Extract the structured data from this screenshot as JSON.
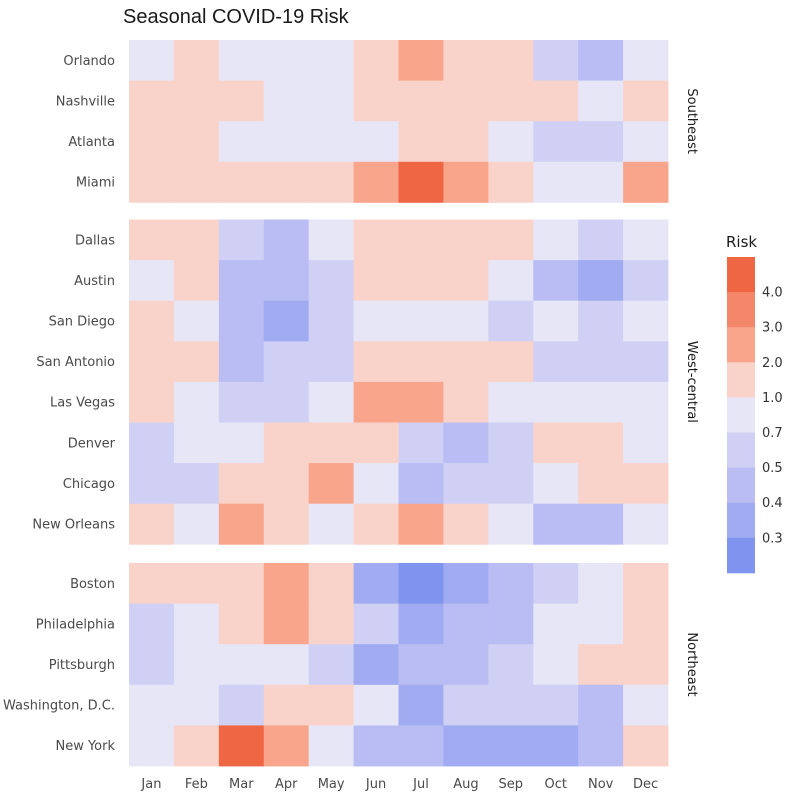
{
  "chart_data": {
    "type": "heatmap",
    "title": "Seasonal COVID-19 Risk",
    "x": [
      "Jan",
      "Feb",
      "Mar",
      "Apr",
      "May",
      "Jun",
      "Jul",
      "Aug",
      "Sep",
      "Oct",
      "Nov",
      "Dec"
    ],
    "legend": {
      "title": "Risk",
      "placement": "right",
      "breaks": [
        4.0,
        3.0,
        2.0,
        1.0,
        0.7,
        0.5,
        0.4,
        0.3
      ],
      "break_labels": [
        "4.0",
        "3.0",
        "2.0",
        "1.0",
        "0.7",
        "0.5",
        "0.4",
        "0.3"
      ],
      "colors": [
        "#ee6644",
        "#f4876a",
        "#f8a58c",
        "#f9d3ca",
        "#e6e6f7",
        "#cfd0f4",
        "#b9bdf4",
        "#a0abf1",
        "#7f94ef"
      ]
    },
    "panels": [
      {
        "name": "Southeast",
        "rows": [
          {
            "city": "Orlando",
            "values": [
              0.8,
              1.2,
              0.8,
              0.8,
              0.8,
              1.2,
              2.5,
              1.2,
              1.2,
              0.6,
              0.45,
              0.8
            ]
          },
          {
            "city": "Nashville",
            "values": [
              1.2,
              1.2,
              1.2,
              0.8,
              0.8,
              1.2,
              1.2,
              1.2,
              1.2,
              1.2,
              0.8,
              1.2
            ]
          },
          {
            "city": "Atlanta",
            "values": [
              1.2,
              1.2,
              0.8,
              0.8,
              0.8,
              0.8,
              1.2,
              1.2,
              0.8,
              0.6,
              0.6,
              0.8
            ]
          },
          {
            "city": "Miami",
            "values": [
              1.2,
              1.2,
              1.2,
              1.2,
              1.2,
              2.5,
              4.5,
              2.5,
              1.2,
              0.8,
              0.8,
              2.5
            ]
          }
        ]
      },
      {
        "name": "West-central",
        "rows": [
          {
            "city": "Dallas",
            "values": [
              1.2,
              1.2,
              0.6,
              0.45,
              0.8,
              1.2,
              1.2,
              1.2,
              1.2,
              0.8,
              0.6,
              0.8
            ]
          },
          {
            "city": "Austin",
            "values": [
              0.8,
              1.2,
              0.45,
              0.45,
              0.6,
              1.2,
              1.2,
              1.2,
              0.8,
              0.45,
              0.35,
              0.6
            ]
          },
          {
            "city": "San Diego",
            "values": [
              1.2,
              0.8,
              0.45,
              0.35,
              0.6,
              0.8,
              0.8,
              0.8,
              0.6,
              0.8,
              0.6,
              0.8
            ]
          },
          {
            "city": "San Antonio",
            "values": [
              1.2,
              1.2,
              0.45,
              0.6,
              0.6,
              1.2,
              1.2,
              1.2,
              1.2,
              0.6,
              0.6,
              0.6
            ]
          },
          {
            "city": "Las Vegas",
            "values": [
              1.2,
              0.8,
              0.6,
              0.6,
              0.8,
              2.5,
              2.5,
              1.2,
              0.8,
              0.8,
              0.8,
              0.8
            ]
          },
          {
            "city": "Denver",
            "values": [
              0.6,
              0.8,
              0.8,
              1.2,
              1.2,
              1.2,
              0.6,
              0.45,
              0.6,
              1.2,
              1.2,
              0.8
            ]
          },
          {
            "city": "Chicago",
            "values": [
              0.6,
              0.6,
              1.2,
              1.2,
              2.5,
              0.8,
              0.45,
              0.6,
              0.6,
              0.8,
              1.2,
              1.2
            ]
          },
          {
            "city": "New Orleans",
            "values": [
              1.2,
              0.8,
              2.5,
              1.2,
              0.8,
              1.2,
              2.5,
              1.2,
              0.8,
              0.45,
              0.45,
              0.8
            ]
          }
        ]
      },
      {
        "name": "Northeast",
        "rows": [
          {
            "city": "Boston",
            "values": [
              1.2,
              1.2,
              1.2,
              2.5,
              1.2,
              0.35,
              0.25,
              0.35,
              0.45,
              0.6,
              0.8,
              1.2
            ]
          },
          {
            "city": "Philadelphia",
            "values": [
              0.6,
              0.8,
              1.2,
              2.5,
              1.2,
              0.6,
              0.35,
              0.45,
              0.45,
              0.8,
              0.8,
              1.2
            ]
          },
          {
            "city": "Pittsburgh",
            "values": [
              0.6,
              0.8,
              0.8,
              0.8,
              0.6,
              0.35,
              0.45,
              0.45,
              0.6,
              0.8,
              1.2,
              1.2
            ]
          },
          {
            "city": "Washington, D.C.",
            "values": [
              0.8,
              0.8,
              0.6,
              1.2,
              1.2,
              0.8,
              0.35,
              0.6,
              0.6,
              0.6,
              0.45,
              0.8
            ]
          },
          {
            "city": "New York",
            "values": [
              0.8,
              1.2,
              4.5,
              2.5,
              0.8,
              0.45,
              0.45,
              0.38,
              0.38,
              0.38,
              0.45,
              1.2
            ]
          }
        ]
      }
    ]
  }
}
